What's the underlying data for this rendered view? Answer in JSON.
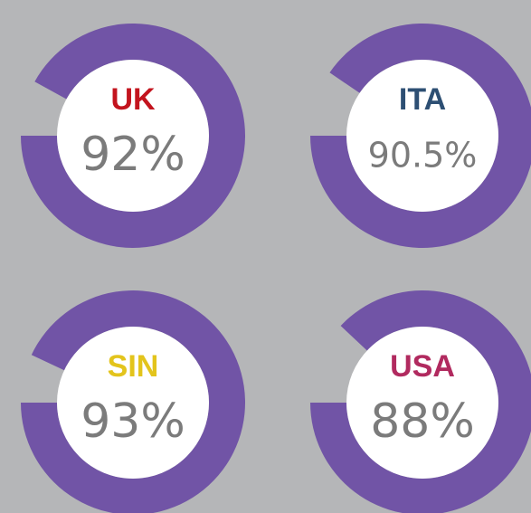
{
  "chart_data": [
    {
      "type": "donut",
      "title": "UK",
      "title_color": "#c3141e",
      "values": [
        92
      ],
      "value_labels": [
        "92%"
      ],
      "color": "#7154a6"
    },
    {
      "type": "donut",
      "title": "ITA",
      "title_color": "#2d4f73",
      "values": [
        90.5
      ],
      "value_labels": [
        "90.5%"
      ],
      "color": "#7154a6"
    },
    {
      "type": "donut",
      "title": "SIN",
      "title_color": "#e3c41c",
      "values": [
        93
      ],
      "value_labels": [
        "93%"
      ],
      "color": "#7154a6"
    },
    {
      "type": "donut",
      "title": "USA",
      "title_color": "#b12a5f",
      "values": [
        88
      ],
      "value_labels": [
        "88%"
      ],
      "color": "#7154a6"
    }
  ]
}
